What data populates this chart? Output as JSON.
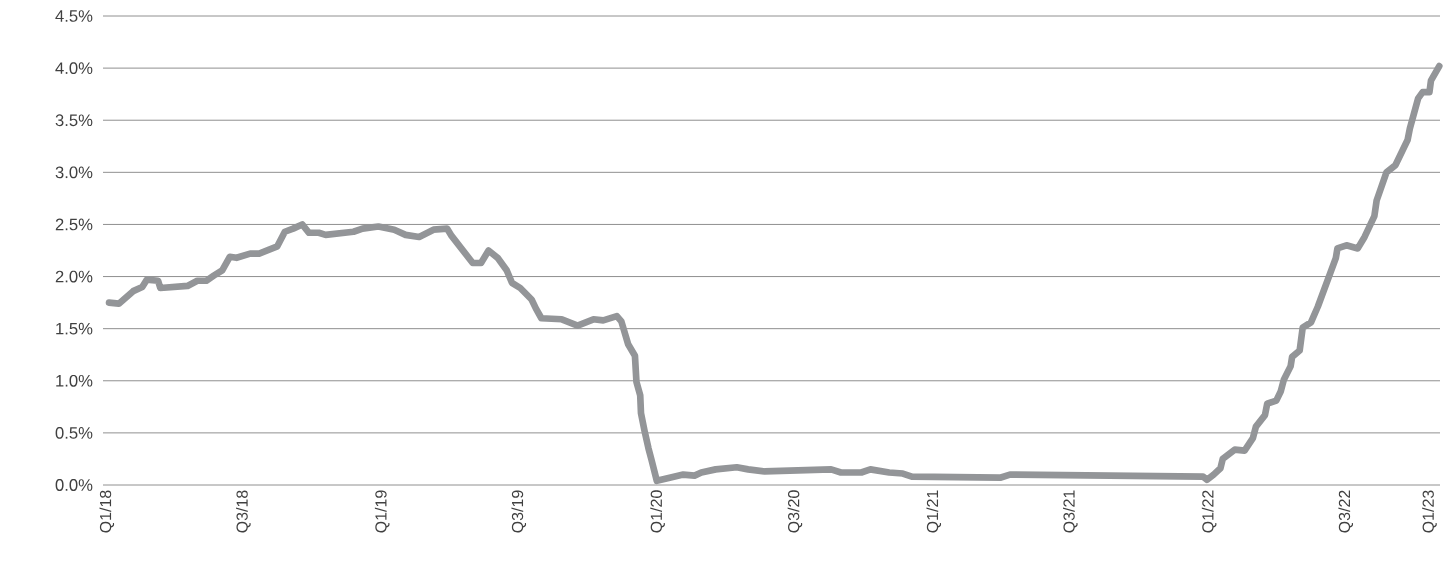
{
  "chart_data": {
    "type": "line",
    "color": "#939598",
    "line_style": "solid",
    "marker": "none",
    "grid": "y",
    "xlim": [
      "2017-12-27",
      "2022-11-03"
    ],
    "xticks": [
      {
        "value": "2018-01-01",
        "label": "Q1/18"
      },
      {
        "value": "2018-07-01",
        "label": "Q3/18"
      },
      {
        "value": "2019-01-01",
        "label": "Q1/19"
      },
      {
        "value": "2019-07-01",
        "label": "Q3/19"
      },
      {
        "value": "2020-01-01",
        "label": "Q1/20"
      },
      {
        "value": "2020-07-01",
        "label": "Q3/20"
      },
      {
        "value": "2021-01-01",
        "label": "Q1/21"
      },
      {
        "value": "2021-07-01",
        "label": "Q3/21"
      },
      {
        "value": "2022-01-01",
        "label": "Q1/22"
      },
      {
        "value": "2022-07-01",
        "label": "Q3/22"
      },
      {
        "value": "2022-10-20",
        "label": "Q1/23"
      }
    ],
    "ylim": [
      0,
      4.5
    ],
    "yticks": [
      {
        "value": 0,
        "label": "0.0%"
      },
      {
        "value": 0.5,
        "label": "0.5%"
      },
      {
        "value": 1,
        "label": "1.0%"
      },
      {
        "value": 1.5,
        "label": "1.5%"
      },
      {
        "value": 2,
        "label": "2.0%"
      },
      {
        "value": 2.5,
        "label": "2.5%"
      },
      {
        "value": 3,
        "label": "3.0%"
      },
      {
        "value": 3.5,
        "label": "3.5%"
      },
      {
        "value": 4,
        "label": "4.0%"
      },
      {
        "value": 4.5,
        "label": "4.5%"
      }
    ],
    "x": [
      "2018-01-04",
      "2018-01-17",
      "2018-02-05",
      "2018-02-17",
      "2018-02-23",
      "2018-03-10",
      "2018-03-13",
      "2018-04-18",
      "2018-05-01",
      "2018-05-13",
      "2018-05-23",
      "2018-06-03",
      "2018-06-13",
      "2018-06-22",
      "2018-07-10",
      "2018-07-22",
      "2018-08-15",
      "2018-08-25",
      "2018-09-05",
      "2018-09-17",
      "2018-09-26",
      "2018-10-09",
      "2018-10-18",
      "2018-11-24",
      "2018-12-06",
      "2018-12-27",
      "2019-01-17",
      "2019-02-01",
      "2019-02-19",
      "2019-03-10",
      "2019-03-28",
      "2019-04-03",
      "2019-05-01",
      "2019-05-12",
      "2019-05-22",
      "2019-06-03",
      "2019-06-15",
      "2019-06-22",
      "2019-07-03",
      "2019-07-18",
      "2019-07-24",
      "2019-07-31",
      "2019-08-27",
      "2019-09-17",
      "2019-10-08",
      "2019-10-21",
      "2019-11-08",
      "2019-11-14",
      "2019-11-23",
      "2019-12-02",
      "2019-12-04",
      "2019-12-09",
      "2019-12-10",
      "2019-12-15",
      "2019-12-20",
      "2019-12-24",
      "2019-12-31",
      "2020-01-17",
      "2020-02-04",
      "2020-02-19",
      "2020-02-28",
      "2020-03-18",
      "2020-04-15",
      "2020-04-30",
      "2020-05-22",
      "2020-08-18",
      "2020-08-31",
      "2020-09-27",
      "2020-10-09",
      "2020-11-03",
      "2020-11-21",
      "2020-12-03",
      "2021-03-30",
      "2021-04-12",
      "2021-12-24",
      "2021-12-29",
      "2022-01-07",
      "2022-01-16",
      "2022-01-19",
      "2022-02-04",
      "2022-02-17",
      "2022-02-28",
      "2022-03-04",
      "2022-03-16",
      "2022-03-19",
      "2022-03-31",
      "2022-04-06",
      "2022-04-10",
      "2022-04-19",
      "2022-04-21",
      "2022-05-01",
      "2022-05-05",
      "2022-05-16",
      "2022-05-25",
      "2022-06-18",
      "2022-06-20",
      "2022-07-02",
      "2022-07-17",
      "2022-07-26",
      "2022-08-08",
      "2022-08-11",
      "2022-08-24",
      "2022-09-05",
      "2022-09-21",
      "2022-09-24",
      "2022-10-05",
      "2022-10-11",
      "2022-10-20",
      "2022-10-22",
      "2022-11-02"
    ],
    "values": [
      1.75,
      1.74,
      1.86,
      1.9,
      1.97,
      1.96,
      1.89,
      1.91,
      1.96,
      1.96,
      2.01,
      2.06,
      2.19,
      2.18,
      2.22,
      2.22,
      2.29,
      2.43,
      2.46,
      2.5,
      2.42,
      2.42,
      2.4,
      2.43,
      2.46,
      2.48,
      2.45,
      2.4,
      2.38,
      2.45,
      2.46,
      2.39,
      2.13,
      2.13,
      2.25,
      2.18,
      2.06,
      1.94,
      1.89,
      1.78,
      1.69,
      1.6,
      1.59,
      1.53,
      1.59,
      1.58,
      1.62,
      1.57,
      1.35,
      1.24,
      0.99,
      0.86,
      0.69,
      0.51,
      0.35,
      0.24,
      0.04,
      0.07,
      0.1,
      0.09,
      0.12,
      0.15,
      0.17,
      0.15,
      0.13,
      0.15,
      0.12,
      0.12,
      0.15,
      0.12,
      0.11,
      0.08,
      0.07,
      0.1,
      0.08,
      0.05,
      0.1,
      0.16,
      0.25,
      0.34,
      0.33,
      0.45,
      0.56,
      0.67,
      0.78,
      0.81,
      0.9,
      1.01,
      1.14,
      1.23,
      1.29,
      1.51,
      1.56,
      1.71,
      2.18,
      2.27,
      2.3,
      2.27,
      2.38,
      2.58,
      2.73,
      3.0,
      3.07,
      3.31,
      3.42,
      3.71,
      3.77,
      3.77,
      3.88,
      4.02
    ]
  }
}
